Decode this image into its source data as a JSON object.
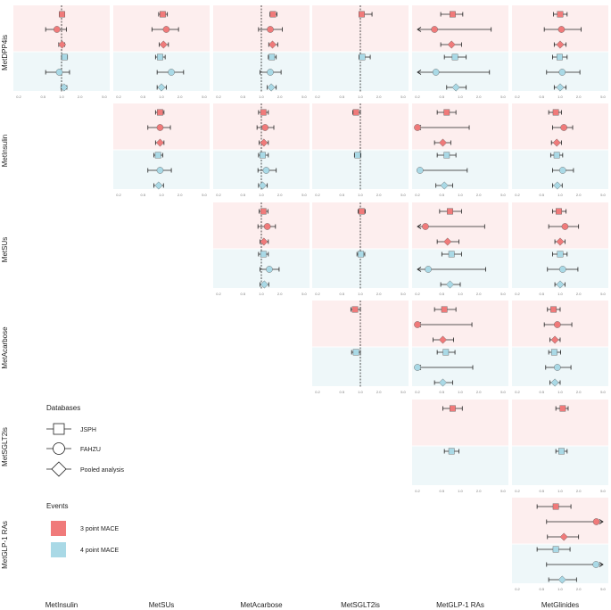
{
  "chart_data": {
    "type": "forest-plot-matrix",
    "title": "",
    "row_labels": [
      "MetDPP4is",
      "MetInsulin",
      "MetSUs",
      "MetAcarbose",
      "MetSGLT2is",
      "MetGLP-1 RAs"
    ],
    "col_labels": [
      "MetInsulin",
      "MetSUs",
      "MetAcarbose",
      "MetSGLT2is",
      "MetGLP-1 RAs",
      "MetGlinides"
    ],
    "x_ticks": [
      "0.2",
      "0.5",
      "1.0",
      "2.0",
      "5.0"
    ],
    "x_range": [
      0.2,
      5.0
    ],
    "x_scale": "log",
    "reference_line": 1.0,
    "legend": {
      "databases_title": "Databases",
      "databases": [
        {
          "name": "JSPH",
          "shape": "square"
        },
        {
          "name": "FAHZU",
          "shape": "circle"
        },
        {
          "name": "Pooled analysis",
          "shape": "diamond"
        }
      ],
      "events_title": "Events",
      "events": [
        {
          "name": "3 point MACE",
          "color": "#f07a7a"
        },
        {
          "name": "4 point MACE",
          "color": "#a9d9e6"
        }
      ]
    },
    "colors": {
      "mace3": "#f07a7a",
      "mace4": "#a9d9e6",
      "band3": "#fdeeee",
      "band4": "#eef7f9",
      "ink": "#222222"
    },
    "panels": [
      {
        "row": 0,
        "col": 0,
        "ref": true,
        "rows": [
          [
            1.02,
            0.92,
            1.12
          ],
          [
            0.84,
            0.55,
            1.2
          ],
          [
            1.02,
            0.9,
            1.12
          ],
          [
            1.12,
            1.0,
            1.25
          ],
          [
            0.92,
            0.55,
            1.35
          ],
          [
            1.1,
            0.98,
            1.22
          ]
        ]
      },
      {
        "row": 0,
        "col": 1,
        "ref": false,
        "rows": [
          [
            1.05,
            0.9,
            1.25
          ],
          [
            1.2,
            0.7,
            1.9
          ],
          [
            1.08,
            0.92,
            1.3
          ],
          [
            0.95,
            0.8,
            1.15
          ],
          [
            1.45,
            0.85,
            2.3
          ],
          [
            1.0,
            0.85,
            1.2
          ]
        ]
      },
      {
        "row": 0,
        "col": 2,
        "ref": true,
        "rows": [
          [
            1.55,
            1.38,
            1.8
          ],
          [
            1.4,
            0.9,
            2.2
          ],
          [
            1.52,
            1.32,
            1.85
          ],
          [
            1.48,
            1.3,
            1.75
          ],
          [
            1.4,
            0.95,
            2.1
          ],
          [
            1.45,
            1.25,
            1.75
          ]
        ]
      },
      {
        "row": 0,
        "col": 3,
        "ref": true,
        "rows": [
          [
            1.05,
            0.95,
            1.55
          ],
          [
            0.0,
            0.0,
            0.0
          ],
          [
            0.0,
            0.0,
            0.0
          ],
          [
            1.07,
            0.95,
            1.45
          ],
          [
            0.0,
            0.0,
            0.0
          ],
          [
            0.0,
            0.0,
            0.0
          ]
        ]
      },
      {
        "row": 0,
        "col": 4,
        "ref": false,
        "rows": [
          [
            0.75,
            0.48,
            1.1
          ],
          [
            0.38,
            0.2,
            3.2
          ],
          [
            0.72,
            0.48,
            1.05
          ],
          [
            0.82,
            0.55,
            1.25
          ],
          [
            0.4,
            0.2,
            3.0
          ],
          [
            0.85,
            0.6,
            1.25
          ]
        ]
      },
      {
        "row": 0,
        "col": 5,
        "ref": false,
        "rows": [
          [
            1.0,
            0.78,
            1.3
          ],
          [
            1.05,
            0.55,
            2.2
          ],
          [
            1.0,
            0.8,
            1.25
          ],
          [
            0.98,
            0.75,
            1.3
          ],
          [
            1.08,
            0.6,
            2.1
          ],
          [
            1.0,
            0.8,
            1.25
          ]
        ]
      },
      {
        "row": 1,
        "col": 1,
        "ref": false,
        "rows": [
          [
            0.95,
            0.8,
            1.1
          ],
          [
            0.95,
            0.6,
            1.4
          ],
          [
            0.95,
            0.8,
            1.1
          ],
          [
            0.88,
            0.75,
            1.05
          ],
          [
            0.95,
            0.6,
            1.45
          ],
          [
            0.9,
            0.75,
            1.08
          ]
        ]
      },
      {
        "row": 1,
        "col": 2,
        "ref": true,
        "rows": [
          [
            1.08,
            0.9,
            1.3
          ],
          [
            1.15,
            0.85,
            1.6
          ],
          [
            1.1,
            0.92,
            1.3
          ],
          [
            1.05,
            0.9,
            1.3
          ],
          [
            1.2,
            0.88,
            1.75
          ],
          [
            1.05,
            0.9,
            1.25
          ]
        ]
      },
      {
        "row": 1,
        "col": 3,
        "ref": true,
        "rows": [
          [
            0.85,
            0.75,
            1.0
          ],
          [
            0.0,
            0.0,
            0.0
          ],
          [
            0.0,
            0.0,
            0.0
          ],
          [
            0.9,
            0.8,
            1.02
          ],
          [
            0.0,
            0.0,
            0.0
          ],
          [
            0.0,
            0.0,
            0.0
          ]
        ]
      },
      {
        "row": 1,
        "col": 4,
        "ref": false,
        "rows": [
          [
            0.6,
            0.42,
            0.85
          ],
          [
            0.2,
            0.2,
            1.4
          ],
          [
            0.52,
            0.38,
            0.7
          ],
          [
            0.6,
            0.42,
            0.85
          ],
          [
            0.22,
            0.2,
            1.3
          ],
          [
            0.55,
            0.4,
            0.75
          ]
        ]
      },
      {
        "row": 1,
        "col": 5,
        "ref": false,
        "rows": [
          [
            0.85,
            0.65,
            1.05
          ],
          [
            1.15,
            0.75,
            1.6
          ],
          [
            0.88,
            0.72,
            1.05
          ],
          [
            0.88,
            0.7,
            1.1
          ],
          [
            1.1,
            0.75,
            1.65
          ],
          [
            0.9,
            0.75,
            1.08
          ]
        ]
      },
      {
        "row": 2,
        "col": 2,
        "ref": true,
        "rows": [
          [
            1.08,
            0.92,
            1.28
          ],
          [
            1.25,
            0.88,
            1.7
          ],
          [
            1.1,
            0.95,
            1.3
          ],
          [
            1.08,
            0.9,
            1.3
          ],
          [
            1.35,
            0.95,
            1.95
          ],
          [
            1.12,
            0.95,
            1.32
          ]
        ]
      },
      {
        "row": 2,
        "col": 3,
        "ref": true,
        "rows": [
          [
            1.05,
            0.92,
            1.2
          ],
          [
            0.0,
            0.0,
            0.0
          ],
          [
            0.0,
            0.0,
            0.0
          ],
          [
            1.02,
            0.88,
            1.18
          ],
          [
            0.0,
            0.0,
            0.0
          ],
          [
            0.0,
            0.0,
            0.0
          ]
        ]
      },
      {
        "row": 2,
        "col": 4,
        "ref": false,
        "rows": [
          [
            0.68,
            0.46,
            1.05
          ],
          [
            0.27,
            0.2,
            2.5
          ],
          [
            0.62,
            0.42,
            0.95
          ],
          [
            0.72,
            0.5,
            1.05
          ],
          [
            0.3,
            0.2,
            2.6
          ],
          [
            0.68,
            0.48,
            1.0
          ]
        ]
      },
      {
        "row": 2,
        "col": 5,
        "ref": false,
        "rows": [
          [
            0.95,
            0.75,
            1.25
          ],
          [
            1.2,
            0.65,
            2.0
          ],
          [
            1.0,
            0.82,
            1.2
          ],
          [
            1.0,
            0.75,
            1.3
          ],
          [
            1.1,
            0.62,
            1.95
          ],
          [
            1.0,
            0.82,
            1.2
          ]
        ]
      },
      {
        "row": 3,
        "col": 3,
        "ref": true,
        "rows": [
          [
            0.82,
            0.7,
            1.0
          ],
          [
            0.0,
            0.0,
            0.0
          ],
          [
            0.0,
            0.0,
            0.0
          ],
          [
            0.85,
            0.72,
            1.0
          ],
          [
            0.0,
            0.0,
            0.0
          ],
          [
            0.0,
            0.0,
            0.0
          ]
        ]
      },
      {
        "row": 3,
        "col": 4,
        "ref": false,
        "rows": [
          [
            0.55,
            0.38,
            0.85
          ],
          [
            0.2,
            0.2,
            1.55
          ],
          [
            0.52,
            0.36,
            0.78
          ],
          [
            0.58,
            0.42,
            0.82
          ],
          [
            0.2,
            0.2,
            1.6
          ],
          [
            0.52,
            0.38,
            0.75
          ]
        ]
      },
      {
        "row": 3,
        "col": 5,
        "ref": false,
        "rows": [
          [
            0.78,
            0.62,
            1.0
          ],
          [
            0.9,
            0.55,
            1.55
          ],
          [
            0.82,
            0.68,
            1.0
          ],
          [
            0.8,
            0.65,
            1.02
          ],
          [
            0.9,
            0.58,
            1.5
          ],
          [
            0.82,
            0.68,
            1.0
          ]
        ]
      },
      {
        "row": 4,
        "col": 4,
        "ref": false,
        "rows": [
          [
            0.75,
            0.52,
            1.08
          ],
          [
            0.0,
            0.0,
            0.0
          ],
          [
            0.0,
            0.0,
            0.0
          ],
          [
            0.72,
            0.55,
            0.95
          ],
          [
            0.0,
            0.0,
            0.0
          ],
          [
            0.0,
            0.0,
            0.0
          ]
        ]
      },
      {
        "row": 4,
        "col": 5,
        "ref": false,
        "rows": [
          [
            1.1,
            0.85,
            1.35
          ],
          [
            0.0,
            0.0,
            0.0
          ],
          [
            0.0,
            0.0,
            0.0
          ],
          [
            1.05,
            0.85,
            1.3
          ],
          [
            0.0,
            0.0,
            0.0
          ],
          [
            0.0,
            0.0,
            0.0
          ]
        ]
      },
      {
        "row": 5,
        "col": 5,
        "ref": false,
        "rows": [
          [
            0.85,
            0.42,
            1.5
          ],
          [
            3.9,
            0.6,
            5.0
          ],
          [
            1.15,
            0.62,
            2.0
          ],
          [
            0.85,
            0.42,
            1.45
          ],
          [
            3.85,
            0.6,
            5.0
          ],
          [
            1.08,
            0.65,
            1.85
          ]
        ]
      }
    ]
  }
}
